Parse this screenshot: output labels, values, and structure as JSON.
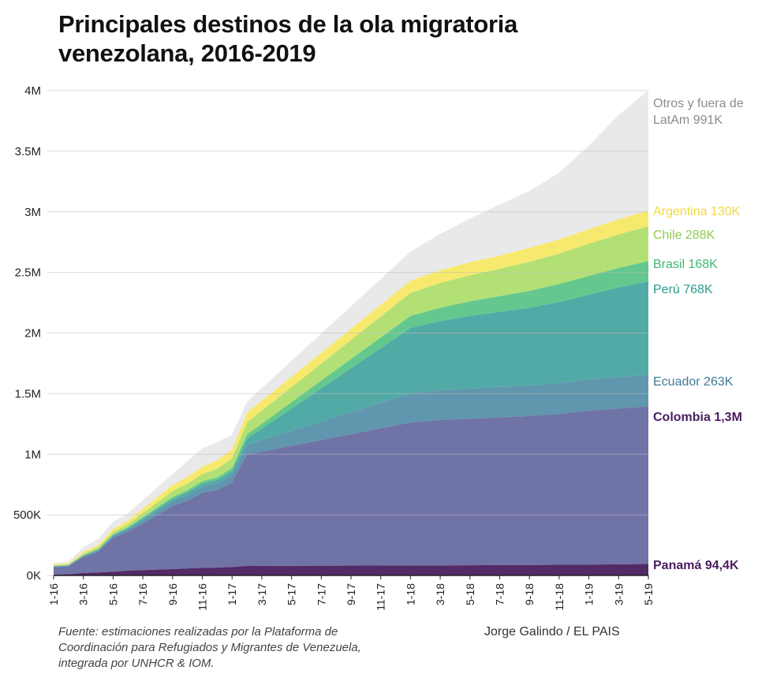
{
  "chart_data": {
    "type": "area",
    "stacked": true,
    "title": "Principales destinos de la ola migratoria venezolana, 2016-2019",
    "ylim": [
      0,
      4000000
    ],
    "y_ticks": [
      0,
      500000,
      1000000,
      1500000,
      2000000,
      2500000,
      3000000,
      3500000,
      4000000
    ],
    "y_tick_labels": [
      "0K",
      "500K",
      "1M",
      "1.5M",
      "2M",
      "2.5M",
      "3M",
      "3.5M",
      "4M"
    ],
    "x_tick_labels": [
      "1-16",
      "3-16",
      "5-16",
      "7-16",
      "9-16",
      "11-16",
      "1-17",
      "3-17",
      "5-17",
      "7-17",
      "9-17",
      "11-17",
      "1-18",
      "3-18",
      "5-18",
      "7-18",
      "9-18",
      "11-18",
      "1-19",
      "3-19",
      "5-19"
    ],
    "x": [
      0,
      1,
      2,
      3,
      4,
      5,
      8,
      9,
      10,
      11,
      12,
      13,
      24,
      26,
      28,
      30,
      32,
      34,
      36,
      38,
      40
    ],
    "series": [
      {
        "name": "Panamá",
        "label": "Panamá 94,4K",
        "color": "#4a1d5e",
        "values": [
          8000,
          10000,
          20000,
          25000,
          30000,
          40000,
          52000,
          58000,
          62000,
          65000,
          70000,
          78000,
          82000,
          83000,
          84000,
          85000,
          86000,
          88000,
          90000,
          92000,
          94400
        ]
      },
      {
        "name": "Colombia",
        "label": "Colombia 1,3M",
        "color": "#5c6098",
        "values": [
          60000,
          65000,
          130000,
          170000,
          280000,
          320000,
          520000,
          560000,
          620000,
          640000,
          700000,
          920000,
          1180000,
          1200000,
          1210000,
          1220000,
          1230000,
          1245000,
          1270000,
          1285000,
          1300000
        ]
      },
      {
        "name": "Ecuador",
        "label": "Ecuador 263K",
        "color": "#4a88a3",
        "values": [
          5000,
          6000,
          10000,
          12000,
          15000,
          20000,
          40000,
          45000,
          50000,
          55000,
          60000,
          80000,
          240000,
          245000,
          248000,
          250000,
          252000,
          254000,
          256000,
          260000,
          263000
        ]
      },
      {
        "name": "Perú",
        "label": "Perú 768K",
        "color": "#3a9e9a",
        "values": [
          3000,
          3000,
          5000,
          6000,
          8000,
          10000,
          20000,
          22000,
          25000,
          28000,
          30000,
          50000,
          540000,
          570000,
          600000,
          620000,
          640000,
          670000,
          700000,
          740000,
          768000
        ]
      },
      {
        "name": "Brasil",
        "label": "Brasil 168K",
        "color": "#4fc07e",
        "values": [
          2000,
          2000,
          3000,
          4000,
          5000,
          8000,
          15000,
          18000,
          20000,
          22000,
          25000,
          35000,
          100000,
          110000,
          120000,
          130000,
          140000,
          148000,
          155000,
          160000,
          168000
        ]
      },
      {
        "name": "Chile",
        "label": "Chile 288K",
        "color": "#a8dc62",
        "values": [
          5000,
          5000,
          10000,
          15000,
          20000,
          25000,
          50000,
          55000,
          60000,
          70000,
          80000,
          100000,
          190000,
          205000,
          215000,
          225000,
          240000,
          250000,
          265000,
          276000,
          288000
        ]
      },
      {
        "name": "Argentina",
        "label": "Argentina 130K",
        "color": "#f5e65a",
        "values": [
          10000,
          10000,
          15000,
          20000,
          25000,
          30000,
          50000,
          55000,
          60000,
          70000,
          75000,
          80000,
          100000,
          105000,
          108000,
          110000,
          115000,
          118000,
          122000,
          126000,
          130000
        ]
      },
      {
        "name": "Otros y fuera de LatAm",
        "label_lines": [
          "Otros y fuera de",
          "LatAm 991K"
        ],
        "color": "#e6e6e6",
        "values": [
          10000,
          15000,
          40000,
          50000,
          60000,
          60000,
          90000,
          130000,
          150000,
          150000,
          120000,
          90000,
          240000,
          300000,
          360000,
          420000,
          470000,
          550000,
          690000,
          860000,
          991000
        ]
      }
    ],
    "label_colors": [
      "#4a1d5e",
      "#4a1d5e",
      "#3d7a96",
      "#2a9a8c",
      "#3db86f",
      "#8fcb4f",
      "#f2d940",
      "#8c8c8c"
    ]
  },
  "footer": {
    "source_lines": [
      "Fuente: estimaciones realizadas por la Plataforma de",
      "Coordinación para Refugiados y Migrantes de Venezuela,",
      "integrada por UNHCR & IOM."
    ],
    "credit": "Jorge Galindo / EL PAIS"
  }
}
